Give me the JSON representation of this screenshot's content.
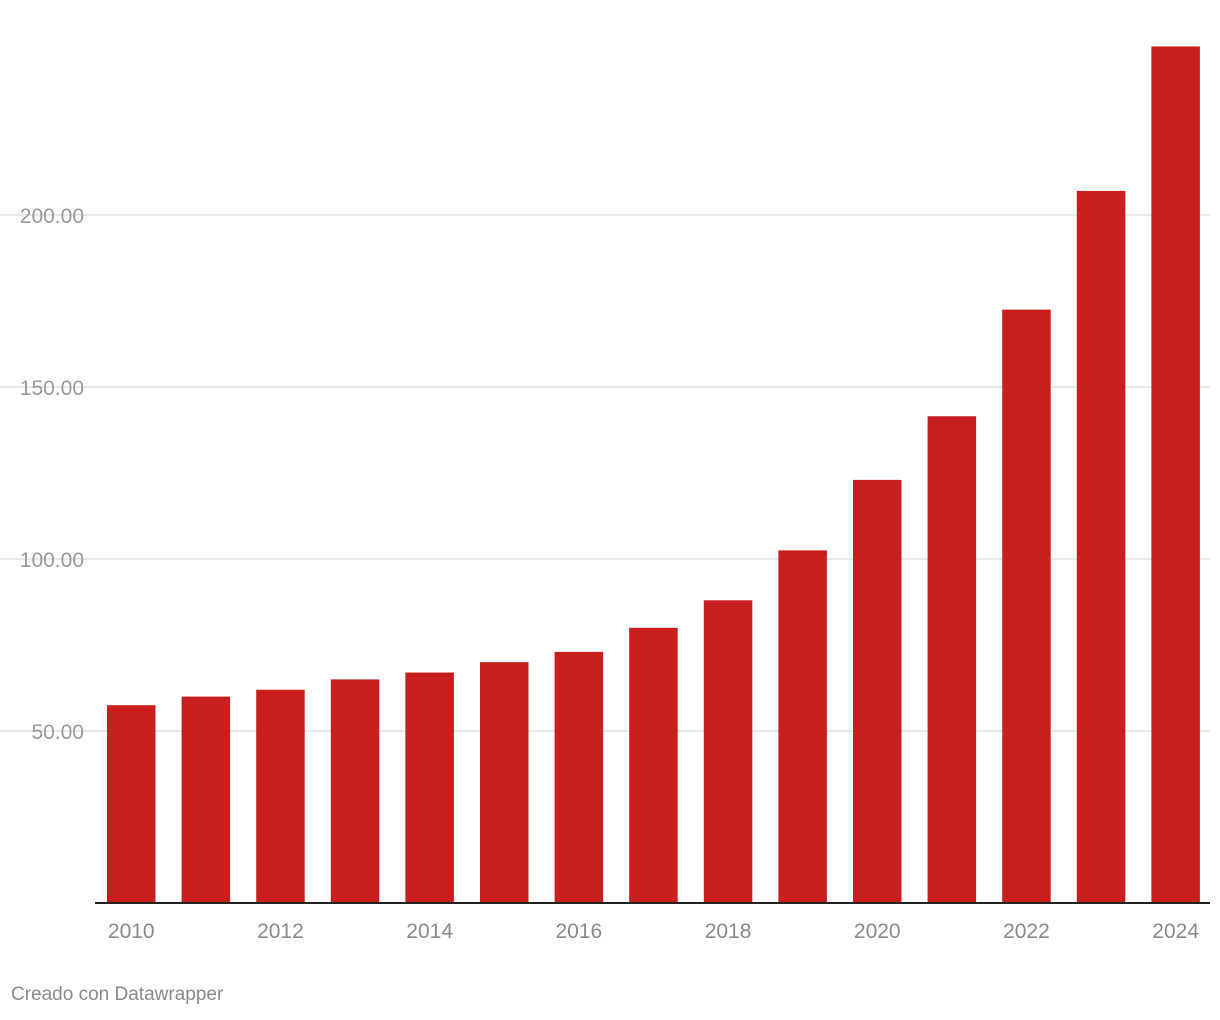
{
  "colors": {
    "bar": "#c81e1e",
    "grid": "#e2e2e2",
    "axis": "#222222"
  },
  "chart_data": {
    "type": "bar",
    "categories": [
      "2010",
      "2011",
      "2012",
      "2013",
      "2014",
      "2015",
      "2016",
      "2017",
      "2018",
      "2019",
      "2020",
      "2021",
      "2022",
      "2023",
      "2024"
    ],
    "values": [
      57.5,
      60,
      62,
      65,
      67,
      70,
      73,
      80,
      88,
      102.5,
      123,
      141.5,
      172.5,
      207,
      249
    ],
    "x_tick_labels": [
      "2010",
      "2012",
      "2014",
      "2016",
      "2018",
      "2020",
      "2022",
      "2024"
    ],
    "y_ticks": [
      50,
      100,
      150,
      200
    ],
    "y_tick_labels": [
      "50.00",
      "100.00",
      "150.00",
      "200.00"
    ],
    "ylim": [
      0,
      260
    ],
    "grid": true,
    "title": "",
    "xlabel": "",
    "ylabel": ""
  },
  "footer": {
    "credit": "Creado con Datawrapper"
  }
}
